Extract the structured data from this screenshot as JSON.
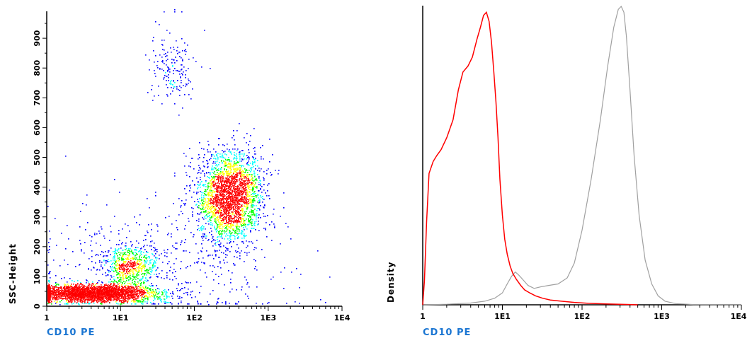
{
  "chart_data": [
    {
      "type": "scatter",
      "subtype": "density-dot-plot",
      "x_scale": "log",
      "xlabel": "CD10 PE",
      "ylabel": "SSC-Height",
      "xlim": [
        1,
        10000
      ],
      "ylim": [
        0,
        1000
      ],
      "x_ticks": [
        "1",
        "1E1",
        "1E2",
        "1E3",
        "1E4"
      ],
      "y_ticks": [
        "0",
        "100",
        "200",
        "300",
        "400",
        "500",
        "600",
        "700",
        "800",
        "900"
      ],
      "y_tick_values": [
        0,
        100,
        200,
        300,
        400,
        500,
        600,
        700,
        800,
        900
      ],
      "colormap": [
        "#0000ff",
        "#00ffff",
        "#00ff00",
        "#ffff00",
        "#ff0000"
      ],
      "populations": [
        {
          "x_center": 4,
          "y_center": 45,
          "x_log_sd": 0.42,
          "y_sd": 14,
          "count": 3000
        },
        {
          "x_center": 300,
          "y_center": 370,
          "x_log_sd": 0.22,
          "y_sd": 75,
          "count": 2500
        },
        {
          "x_center": 13,
          "y_center": 140,
          "x_log_sd": 0.2,
          "y_sd": 35,
          "count": 600
        },
        {
          "x_center": 50,
          "y_center": 800,
          "x_log_sd": 0.15,
          "y_sd": 60,
          "count": 180
        },
        {
          "x_center": 30,
          "y_center": 120,
          "x_log_sd": 0.9,
          "y_sd": 110,
          "count": 500
        }
      ],
      "x_axis_color": "#1a75d2"
    },
    {
      "type": "line",
      "subtype": "histogram-overlay",
      "x_scale": "log",
      "xlabel": "CD10 PE",
      "ylabel": "Density",
      "xlim": [
        1,
        10000
      ],
      "ylim": [
        0,
        1
      ],
      "x_ticks": [
        "1",
        "1E1",
        "1E2",
        "1E3",
        "1E4"
      ],
      "x_axis_color": "#1a75d2",
      "series": [
        {
          "color": "#ff0000",
          "x": [
            1,
            1.05,
            1.12,
            1.2,
            1.35,
            1.5,
            1.7,
            2,
            2.4,
            2.8,
            3.2,
            3.7,
            4.2,
            4.8,
            5.3,
            5.8,
            6.3,
            6.8,
            7.3,
            7.8,
            8.3,
            8.8,
            9.3,
            10,
            10.7,
            11.5,
            12.5,
            13.5,
            15,
            17,
            19,
            22,
            26,
            32,
            40,
            55,
            80,
            120,
            200,
            300,
            500
          ],
          "y": [
            0,
            0.08,
            0.28,
            0.44,
            0.48,
            0.5,
            0.52,
            0.56,
            0.62,
            0.72,
            0.78,
            0.8,
            0.83,
            0.89,
            0.93,
            0.97,
            0.98,
            0.95,
            0.88,
            0.78,
            0.68,
            0.56,
            0.42,
            0.3,
            0.22,
            0.17,
            0.13,
            0.105,
            0.085,
            0.065,
            0.05,
            0.04,
            0.03,
            0.022,
            0.016,
            0.012,
            0.008,
            0.005,
            0.003,
            0.002,
            0
          ]
        },
        {
          "color": "#a0a0a0",
          "x": [
            1,
            2,
            4,
            6,
            8,
            10,
            11.5,
            13,
            14.5,
            16,
            18,
            21,
            25,
            30,
            38,
            50,
            65,
            80,
            100,
            130,
            170,
            210,
            250,
            285,
            310,
            335,
            360,
            400,
            450,
            520,
            620,
            750,
            900,
            1100,
            1500,
            2500,
            10000
          ],
          "y": [
            0,
            0.002,
            0.006,
            0.012,
            0.022,
            0.04,
            0.07,
            0.095,
            0.11,
            0.1,
            0.085,
            0.065,
            0.055,
            0.06,
            0.065,
            0.07,
            0.09,
            0.14,
            0.25,
            0.42,
            0.62,
            0.8,
            0.93,
            0.99,
            1.0,
            0.98,
            0.9,
            0.72,
            0.5,
            0.3,
            0.15,
            0.07,
            0.03,
            0.012,
            0.004,
            0.001,
            0
          ]
        }
      ]
    }
  ]
}
